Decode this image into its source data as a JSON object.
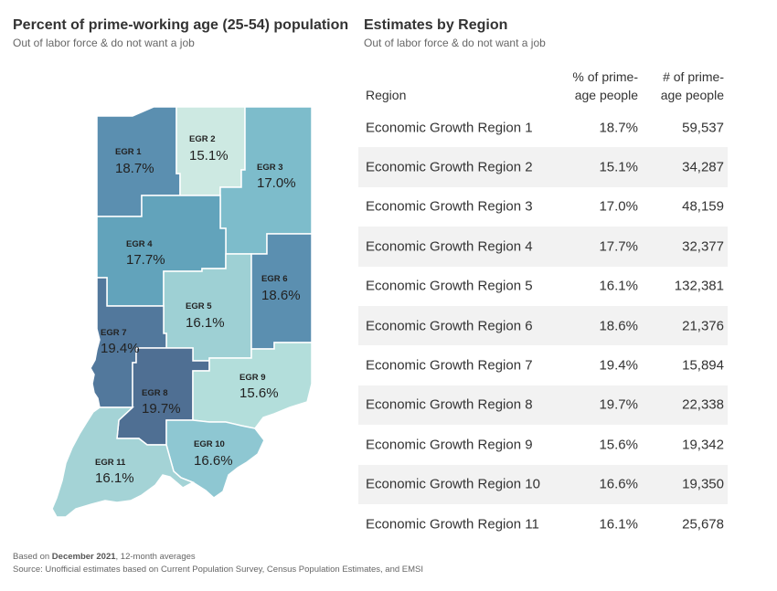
{
  "map": {
    "title": "Percent of prime-working age (25-54) population",
    "subtitle": "Out of labor force & do not want a job",
    "regions": [
      {
        "code": "EGR 1",
        "pct": "18.7%",
        "color": "#5b8fb0"
      },
      {
        "code": "EGR 2",
        "pct": "15.1%",
        "color": "#cde9e2"
      },
      {
        "code": "EGR 3",
        "pct": "17.0%",
        "color": "#7dbccb"
      },
      {
        "code": "EGR 4",
        "pct": "17.7%",
        "color": "#62a3bb"
      },
      {
        "code": "EGR 5",
        "pct": "16.1%",
        "color": "#9ed0d4"
      },
      {
        "code": "EGR 6",
        "pct": "18.6%",
        "color": "#5b8fb0"
      },
      {
        "code": "EGR 7",
        "pct": "19.4%",
        "color": "#52789c"
      },
      {
        "code": "EGR 8",
        "pct": "19.7%",
        "color": "#4f6f93"
      },
      {
        "code": "EGR 9",
        "pct": "15.6%",
        "color": "#b3dedb"
      },
      {
        "code": "EGR 10",
        "pct": "16.6%",
        "color": "#8ec7d2"
      },
      {
        "code": "EGR 11",
        "pct": "16.1%",
        "color": "#a4d3d6"
      }
    ]
  },
  "table": {
    "title": "Estimates by Region",
    "subtitle": "Out of labor force & do not want a job",
    "headers": {
      "region": "Region",
      "pct_line1": "% of prime-",
      "pct_line2": "age people",
      "num_line1": "# of prime-",
      "num_line2": "age people"
    },
    "rows": [
      {
        "region": "Economic Growth Region 1",
        "pct": "18.7%",
        "num": "59,537"
      },
      {
        "region": "Economic Growth Region 2",
        "pct": "15.1%",
        "num": "34,287"
      },
      {
        "region": "Economic Growth Region 3",
        "pct": "17.0%",
        "num": "48,159"
      },
      {
        "region": "Economic Growth Region 4",
        "pct": "17.7%",
        "num": "32,377"
      },
      {
        "region": "Economic Growth Region 5",
        "pct": "16.1%",
        "num": "132,381"
      },
      {
        "region": "Economic Growth Region 6",
        "pct": "18.6%",
        "num": "21,376"
      },
      {
        "region": "Economic Growth Region 7",
        "pct": "19.4%",
        "num": "15,894"
      },
      {
        "region": "Economic Growth Region 8",
        "pct": "19.7%",
        "num": "22,338"
      },
      {
        "region": "Economic Growth Region 9",
        "pct": "15.6%",
        "num": "19,342"
      },
      {
        "region": "Economic Growth Region 10",
        "pct": "16.6%",
        "num": "19,350"
      },
      {
        "region": "Economic Growth Region 11",
        "pct": "16.1%",
        "num": "25,678"
      }
    ]
  },
  "footer": {
    "based_on_prefix": "Based on ",
    "based_on_bold": "December 2021",
    "based_on_suffix": ", 12-month averages",
    "source": "Source: Unofficial estimates based on Current Population Survey, Census Population Estimates, and EMSI"
  }
}
